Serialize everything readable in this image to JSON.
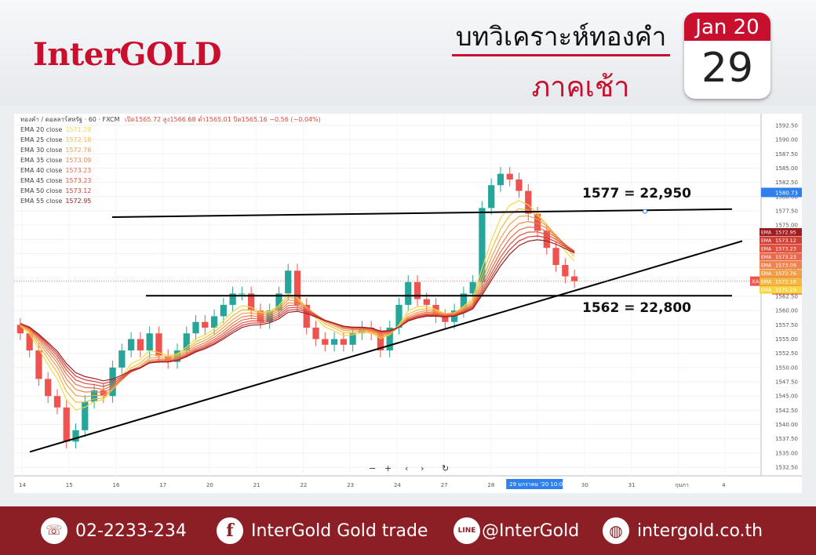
{
  "header": {
    "logo": "InterGOLD",
    "title_line1": "บทวิเคราะห์ทองคำ",
    "title_line2": "ภาคเช้า",
    "calendar": {
      "month_year": "Jan 20",
      "day": "29"
    }
  },
  "chart_header": {
    "symbol": "ทองคำ / ดอลลาร์สหรัฐ · 60 · FXCM",
    "ohlc": "เปิด1565.72 สูง1566.68 ต่ำ1565.01 ปิด1565.16 −0.56 (−0.04%)"
  },
  "colors": {
    "brand_red": "#c8102e",
    "footer_bg": "#8c1f25",
    "candle_up": "#26a69a",
    "candle_down": "#ef5350"
  },
  "chart_data": {
    "type": "candlestick",
    "x_tick_labels": [
      "14",
      "15",
      "16",
      "17",
      "20",
      "21",
      "22",
      "23",
      "24",
      "27",
      "28",
      "29 มกราคม '20",
      "30",
      "31",
      "กุมภา",
      "4"
    ],
    "y_ticks": [
      1532.5,
      1535.0,
      1537.5,
      1540.0,
      1542.5,
      1545.0,
      1547.5,
      1550.0,
      1552.5,
      1555.0,
      1557.5,
      1560.0,
      1562.5,
      1565.0,
      1567.5,
      1570.0,
      1572.5,
      1575.0,
      1577.5,
      1580.0,
      1582.5,
      1585.0,
      1587.5,
      1590.0,
      1592.5
    ],
    "ylim": [
      1531.0,
      1594.0
    ],
    "current_price_label": "XAUUSD",
    "current_price": 1565.16,
    "countdown": "22:25",
    "crosshair_price": 1580.73,
    "ema_legend": [
      {
        "name": "EMA 20 close",
        "value": "1571.29",
        "color": "#f6d743"
      },
      {
        "name": "EMA 25 close",
        "value": "1572.18",
        "color": "#f3b843"
      },
      {
        "name": "EMA 30 close",
        "value": "1572.76",
        "color": "#f0a04a"
      },
      {
        "name": "EMA 35 close",
        "value": "1573.09",
        "color": "#ee8450"
      },
      {
        "name": "EMA 40 close",
        "value": "1573.23",
        "color": "#e96a4e"
      },
      {
        "name": "EMA 45 close",
        "value": "1573.23",
        "color": "#e0503f"
      },
      {
        "name": "EMA 50 close",
        "value": "1573.12",
        "color": "#cf3d34"
      },
      {
        "name": "EMA 55 close",
        "value": "1572.95",
        "color": "#9c1e22"
      }
    ],
    "ema_tag_label": "EMA",
    "close_series": [
      1556,
      1553,
      1548,
      1545,
      1543,
      1537,
      1539,
      1544,
      1546,
      1545,
      1550,
      1553,
      1555,
      1553,
      1556,
      1552,
      1551,
      1553,
      1556,
      1558,
      1557,
      1559,
      1561,
      1563,
      1563,
      1560,
      1558,
      1560,
      1563,
      1567,
      1561,
      1557,
      1555,
      1554,
      1555,
      1554,
      1556,
      1557,
      1556,
      1553,
      1557,
      1561,
      1565,
      1562,
      1561,
      1559,
      1558,
      1560,
      1563,
      1565,
      1578,
      1582,
      1584,
      1583,
      1581,
      1577,
      1574,
      1571,
      1568,
      1566,
      1565.16
    ],
    "annotations": [
      {
        "text": "1577 = ",
        "value": "22,950",
        "price": 1577.2
      },
      {
        "text": "1562 = ",
        "value": "22,800",
        "price": 1562.6
      }
    ]
  },
  "toolbar": {
    "zoom_out": "−",
    "zoom_in": "+",
    "scroll_left": "‹",
    "scroll_right": "›",
    "reset": "↻"
  },
  "footer": {
    "phone": "02-2233-234",
    "facebook": "InterGold Gold trade",
    "line": "@InterGold",
    "website": "intergold.co.th",
    "icons": {
      "phone": "phone-icon",
      "facebook": "facebook-icon",
      "line": "line-icon",
      "web": "globe-icon"
    }
  }
}
